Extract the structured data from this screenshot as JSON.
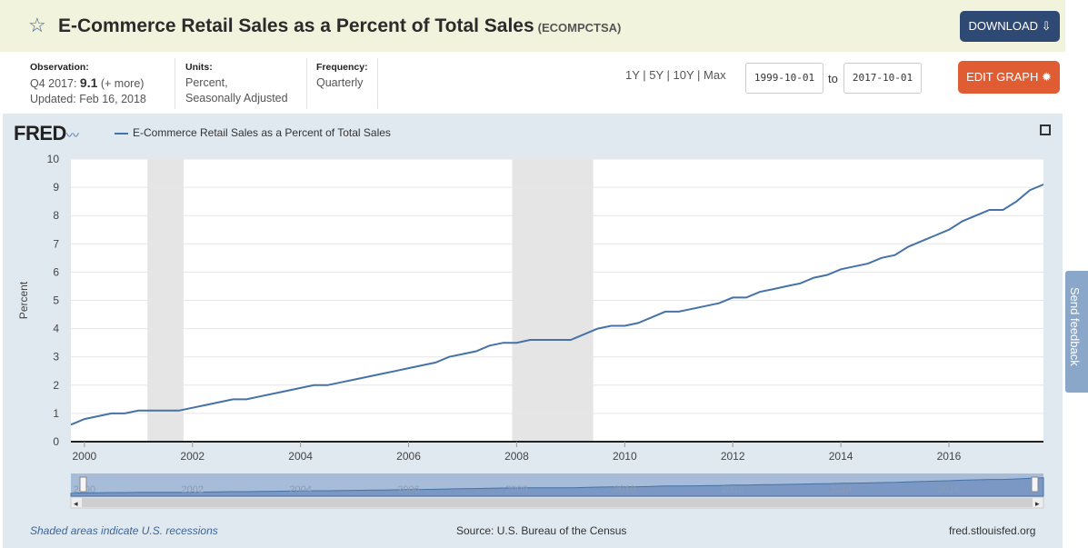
{
  "header": {
    "title": "E-Commerce Retail Sales as a Percent of Total Sales",
    "series_id": "(ECOMPCTSA)",
    "download_label": "DOWNLOAD"
  },
  "meta": {
    "observation_label": "Observation:",
    "observation_period": "Q4 2017:",
    "observation_value": "9.1",
    "observation_more": "(+ more)",
    "updated": "Updated: Feb 16, 2018",
    "units_label": "Units:",
    "units_line1": "Percent,",
    "units_line2": "Seasonally Adjusted",
    "frequency_label": "Frequency:",
    "frequency_value": "Quarterly"
  },
  "controls": {
    "range_links": "1Y | 5Y | 10Y | Max",
    "start_date": "1999-10-01",
    "to_label": "to",
    "end_date": "2017-10-01",
    "edit_label": "EDIT GRAPH"
  },
  "graph": {
    "logo": "FRED",
    "legend": "E-Commerce Retail Sales as a Percent of Total Sales"
  },
  "feedback": {
    "label": "Send feedback"
  },
  "footer": {
    "note": "Shaded areas indicate U.S. recessions",
    "source": "Source: U.S. Bureau of the Census",
    "site": "fred.stlouisfed.org"
  },
  "colors": {
    "line": "#4572a7",
    "recession": "#e5e5e5",
    "download": "#2e4a74",
    "edit": "#e05d33"
  },
  "chart_data": {
    "type": "line",
    "ylabel": "Percent",
    "xlabel": "",
    "ylim": [
      0,
      10
    ],
    "xlim": [
      1999.75,
      2017.75
    ],
    "yticks": [
      0,
      1,
      2,
      3,
      4,
      5,
      6,
      7,
      8,
      9,
      10
    ],
    "xticks": [
      "2000",
      "2002",
      "2004",
      "2006",
      "2008",
      "2010",
      "2012",
      "2014",
      "2016"
    ],
    "navigator_labels": [
      "2000",
      "2002",
      "2004",
      "2006",
      "2008",
      "2010",
      "2012",
      "2014",
      "2016"
    ],
    "recessions": [
      [
        "2001-03",
        "2001-11"
      ],
      [
        "2007-12",
        "2009-06"
      ]
    ],
    "grid": true,
    "series": [
      {
        "name": "E-Commerce Retail Sales as a Percent of Total Sales",
        "x": [
          "1999-10-01",
          "2000-01-01",
          "2000-04-01",
          "2000-07-01",
          "2000-10-01",
          "2001-01-01",
          "2001-04-01",
          "2001-07-01",
          "2001-10-01",
          "2002-01-01",
          "2002-04-01",
          "2002-07-01",
          "2002-10-01",
          "2003-01-01",
          "2003-04-01",
          "2003-07-01",
          "2003-10-01",
          "2004-01-01",
          "2004-04-01",
          "2004-07-01",
          "2004-10-01",
          "2005-01-01",
          "2005-04-01",
          "2005-07-01",
          "2005-10-01",
          "2006-01-01",
          "2006-04-01",
          "2006-07-01",
          "2006-10-01",
          "2007-01-01",
          "2007-04-01",
          "2007-07-01",
          "2007-10-01",
          "2008-01-01",
          "2008-04-01",
          "2008-07-01",
          "2008-10-01",
          "2009-01-01",
          "2009-04-01",
          "2009-07-01",
          "2009-10-01",
          "2010-01-01",
          "2010-04-01",
          "2010-07-01",
          "2010-10-01",
          "2011-01-01",
          "2011-04-01",
          "2011-07-01",
          "2011-10-01",
          "2012-01-01",
          "2012-04-01",
          "2012-07-01",
          "2012-10-01",
          "2013-01-01",
          "2013-04-01",
          "2013-07-01",
          "2013-10-01",
          "2014-01-01",
          "2014-04-01",
          "2014-07-01",
          "2014-10-01",
          "2015-01-01",
          "2015-04-01",
          "2015-07-01",
          "2015-10-01",
          "2016-01-01",
          "2016-04-01",
          "2016-07-01",
          "2016-10-01",
          "2017-01-01",
          "2017-04-01",
          "2017-07-01",
          "2017-10-01"
        ],
        "values": [
          0.6,
          0.8,
          0.9,
          1.0,
          1.0,
          1.1,
          1.1,
          1.1,
          1.1,
          1.2,
          1.3,
          1.4,
          1.5,
          1.5,
          1.6,
          1.7,
          1.8,
          1.9,
          2.0,
          2.0,
          2.1,
          2.2,
          2.3,
          2.4,
          2.5,
          2.6,
          2.7,
          2.8,
          3.0,
          3.1,
          3.2,
          3.4,
          3.5,
          3.5,
          3.6,
          3.6,
          3.6,
          3.6,
          3.8,
          4.0,
          4.1,
          4.1,
          4.2,
          4.4,
          4.6,
          4.6,
          4.7,
          4.8,
          4.9,
          5.1,
          5.1,
          5.3,
          5.4,
          5.5,
          5.6,
          5.8,
          5.9,
          6.1,
          6.2,
          6.3,
          6.5,
          6.6,
          6.9,
          7.1,
          7.3,
          7.5,
          7.8,
          8.0,
          8.2,
          8.2,
          8.5,
          8.9,
          9.1
        ]
      }
    ]
  }
}
